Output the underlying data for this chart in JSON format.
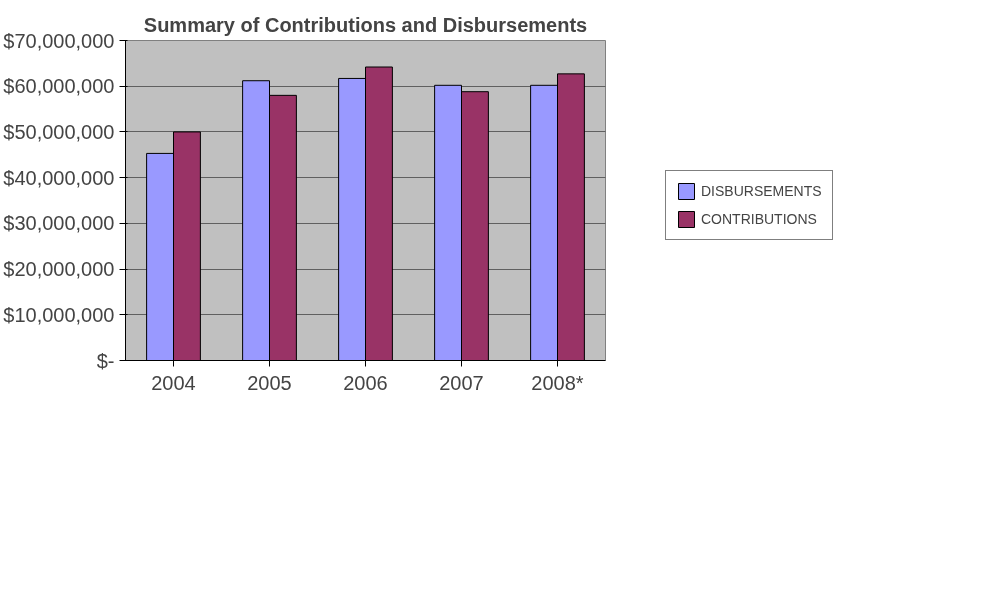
{
  "chart_data": {
    "type": "bar",
    "title": "Summary of Contributions and Disbursements",
    "categories": [
      "2004",
      "2005",
      "2006",
      "2007",
      "2008*"
    ],
    "series": [
      {
        "name": "DISBURSEMENTS",
        "color": "#9999ff",
        "values": [
          45300000,
          61200000,
          61700000,
          60200000,
          60200000
        ]
      },
      {
        "name": "CONTRIBUTIONS",
        "color": "#993366",
        "values": [
          50000000,
          58000000,
          64200000,
          58800000,
          62700000
        ]
      }
    ],
    "ylim": [
      0,
      70000000
    ],
    "yticks": [
      {
        "value": 0,
        "label": "$-"
      },
      {
        "value": 10000000,
        "label": "$10,000,000"
      },
      {
        "value": 20000000,
        "label": "$20,000,000"
      },
      {
        "value": 30000000,
        "label": "$30,000,000"
      },
      {
        "value": 40000000,
        "label": "$40,000,000"
      },
      {
        "value": 50000000,
        "label": "$50,000,000"
      },
      {
        "value": 60000000,
        "label": "$60,000,000"
      },
      {
        "value": 70000000,
        "label": "$70,000,000"
      }
    ],
    "grid": "y",
    "legend": "right"
  }
}
